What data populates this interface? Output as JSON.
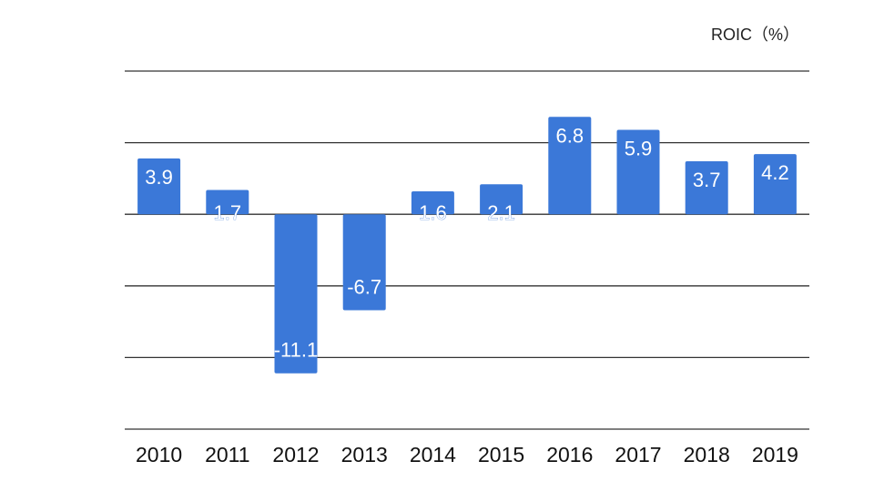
{
  "chart_data": {
    "type": "bar",
    "title": "",
    "unit_label": "ROIC（%）",
    "categories": [
      "2010",
      "2011",
      "2012",
      "2013",
      "2014",
      "2015",
      "2016",
      "2017",
      "2018",
      "2019"
    ],
    "values": [
      3.9,
      1.7,
      -11.1,
      -6.7,
      1.6,
      2.1,
      6.8,
      5.9,
      3.7,
      4.2
    ],
    "data_labels": [
      "3.9",
      "1.7",
      "-11.1",
      "-6.7",
      "1.6",
      "2.1",
      "6.8",
      "5.9",
      "3.7",
      "4.2"
    ],
    "ylim": [
      -15,
      10
    ],
    "gridlines": [
      10,
      5,
      0,
      -5,
      -10,
      -15
    ],
    "grid": true,
    "legend": false,
    "bar_color": "#3b78d8",
    "label_color": "#ffffff",
    "grid_color": "#333333"
  }
}
